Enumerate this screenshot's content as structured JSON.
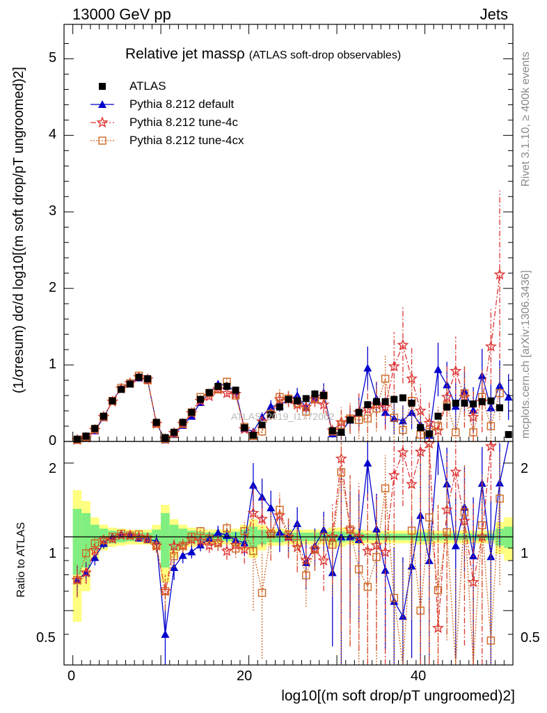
{
  "header": {
    "left": "13000 GeV pp",
    "right": "Jets"
  },
  "title": {
    "main": "Relative jet massρ",
    "sub": "(ATLAS soft-drop observables)"
  },
  "side_labels": {
    "rivet": "Rivet 3.1.10, ≥ 400k events",
    "mcplots": "mcplots.cern.ch [arXiv:1306.3436]"
  },
  "watermark": "ATLAS_2019_I1772062",
  "axes": {
    "ylabel_main": "(1/σresum) dσ/d log10[(m soft drop/pT ungroomed)2]",
    "ylabel_ratio": "Ratio to ATLAS",
    "xlabel": "log10[(m soft drop/pT ungroomed)2]",
    "main_yticks": [
      "0",
      "1",
      "2",
      "3",
      "4",
      "5"
    ],
    "ratio_yticks": [
      "0.5",
      "1",
      "2"
    ],
    "xticks": [
      "0",
      "20",
      "40"
    ]
  },
  "legend": [
    {
      "label": "ATLAS",
      "color": "#000000",
      "marker": "square-filled"
    },
    {
      "label": "Pythia 8.212 default",
      "color": "#0000cc",
      "marker": "triangle-filled"
    },
    {
      "label": "Pythia 8.212 tune-4c",
      "color": "#dd3333",
      "marker": "star"
    },
    {
      "label": "Pythia 8.212 tune-4cx",
      "color": "#cc6622",
      "marker": "square-open"
    }
  ],
  "chart_data": {
    "type": "scatter",
    "title": "Relative jet massρ (ATLAS soft-drop observables)",
    "xlabel": "log10[(m soft drop/pT ungroomed)2]",
    "ylabel": "(1/σresum) dσ/d log10[(m soft drop/pT ungroomed)2]",
    "xlim": [
      -1,
      50
    ],
    "ylim": [
      0,
      5.45
    ],
    "ratio_ylim": [
      0.3,
      2.45
    ],
    "x": [
      0.5,
      1.5,
      2.5,
      3.5,
      4.5,
      5.5,
      6.5,
      7.5,
      8.5,
      9.5,
      10.5,
      11.5,
      12.5,
      13.5,
      14.5,
      15.5,
      16.5,
      17.5,
      18.5,
      19.5,
      20.5,
      21.5,
      22.5,
      23.5,
      24.5,
      25.5,
      26.5,
      27.5,
      28.5,
      29.5,
      30.5,
      31.5,
      32.5,
      33.5,
      34.5,
      35.5,
      36.5,
      37.5,
      38.5,
      39.5,
      40.5,
      41.5,
      42.5,
      43.5,
      44.5,
      45.5,
      46.5,
      47.5,
      48.5,
      49.5
    ],
    "series": [
      {
        "name": "ATLAS",
        "values": [
          0.03,
          0.07,
          0.17,
          0.33,
          0.53,
          0.68,
          0.75,
          0.84,
          0.82,
          0.25,
          0.05,
          0.12,
          0.25,
          0.38,
          0.55,
          0.64,
          0.72,
          0.72,
          0.67,
          0.18,
          0.08,
          0.22,
          0.35,
          0.45,
          0.55,
          0.53,
          0.56,
          0.62,
          0.6,
          0.14,
          0.12,
          0.28,
          0.38,
          0.48,
          0.52,
          0.52,
          0.55,
          0.57,
          0.5,
          0.18,
          0.1,
          0.33,
          0.45,
          0.5,
          0.5,
          0.49,
          0.52,
          0.53,
          0.44,
          0.09
        ]
      },
      {
        "name": "Pythia 8.212 default",
        "values": [
          0.02,
          0.05,
          0.14,
          0.31,
          0.53,
          0.7,
          0.77,
          0.83,
          0.8,
          0.24,
          0.02,
          0.09,
          0.21,
          0.33,
          0.51,
          0.63,
          0.75,
          0.73,
          0.65,
          0.17,
          0.13,
          0.32,
          0.46,
          0.47,
          0.55,
          0.6,
          0.44,
          0.57,
          0.64,
          0.1,
          0.12,
          0.28,
          0.37,
          0.96,
          0.56,
          0.38,
          0.3,
          0.27,
          0.38,
          0.22,
          0.08,
          0.94,
          0.74,
          0.46,
          0.66,
          0.41,
          0.86,
          0.44,
          0.73,
          0.58
        ],
        "errors": [
          0.003,
          0.005,
          0.01,
          0.015,
          0.02,
          0.02,
          0.02,
          0.02,
          0.02,
          0.015,
          0.005,
          0.01,
          0.015,
          0.02,
          0.03,
          0.04,
          0.05,
          0.05,
          0.05,
          0.02,
          0.03,
          0.06,
          0.08,
          0.08,
          0.1,
          0.1,
          0.1,
          0.1,
          0.12,
          0.05,
          0.1,
          0.15,
          0.2,
          0.28,
          0.22,
          0.2,
          0.2,
          0.2,
          0.22,
          0.2,
          0.1,
          0.35,
          0.3,
          0.3,
          0.3,
          0.3,
          0.35,
          0.3,
          0.33,
          0.3
        ]
      },
      {
        "name": "Pythia 8.212 tune-4c",
        "values": [
          0.02,
          0.05,
          0.15,
          0.32,
          0.52,
          0.69,
          0.76,
          0.84,
          0.81,
          0.23,
          0.03,
          0.11,
          0.23,
          0.37,
          0.53,
          0.59,
          0.68,
          0.63,
          0.62,
          0.16,
          0.1,
          0.26,
          0.36,
          0.55,
          0.55,
          0.48,
          0.45,
          0.55,
          0.48,
          0.14,
          0.25,
          0.3,
          0.38,
          0.42,
          0.48,
          0.45,
          0.98,
          1.26,
          0.82,
          0.4,
          0.24,
          0.14,
          0.58,
          0.92,
          0.58,
          0.32,
          0.52,
          1.24,
          2.18,
          0.0
        ],
        "errors": [
          0.003,
          0.005,
          0.01,
          0.015,
          0.02,
          0.02,
          0.02,
          0.02,
          0.02,
          0.015,
          0.005,
          0.01,
          0.015,
          0.02,
          0.03,
          0.04,
          0.05,
          0.05,
          0.05,
          0.02,
          0.03,
          0.06,
          0.08,
          0.1,
          0.1,
          0.1,
          0.1,
          0.1,
          0.12,
          0.05,
          0.2,
          0.2,
          0.25,
          0.3,
          0.3,
          0.3,
          0.45,
          0.5,
          0.4,
          0.35,
          0.3,
          0.3,
          0.4,
          0.45,
          0.4,
          0.35,
          0.4,
          0.5,
          1.1,
          0.0
        ]
      },
      {
        "name": "Pythia 8.212 tune-4cx",
        "values": [
          0.02,
          0.06,
          0.16,
          0.32,
          0.53,
          0.7,
          0.76,
          0.86,
          0.8,
          0.23,
          0.03,
          0.1,
          0.23,
          0.38,
          0.58,
          0.63,
          0.68,
          0.78,
          0.6,
          0.19,
          0.07,
          0.13,
          0.36,
          0.58,
          0.56,
          0.5,
          0.39,
          0.55,
          0.6,
          0.13,
          0.22,
          0.3,
          0.28,
          0.3,
          0.43,
          0.82,
          0.31,
          0.15,
          0.53,
          0.09,
          0.12,
          0.2,
          0.47,
          0.12,
          0.63,
          0.12,
          0.58,
          0.2,
          0.63,
          0.0
        ],
        "errors": [
          0.003,
          0.005,
          0.01,
          0.015,
          0.02,
          0.02,
          0.02,
          0.02,
          0.02,
          0.015,
          0.005,
          0.01,
          0.015,
          0.02,
          0.03,
          0.04,
          0.05,
          0.05,
          0.05,
          0.02,
          0.03,
          0.06,
          0.08,
          0.1,
          0.1,
          0.1,
          0.1,
          0.1,
          0.12,
          0.05,
          0.2,
          0.2,
          0.25,
          0.3,
          0.3,
          0.3,
          0.3,
          0.3,
          0.3,
          0.3,
          0.2,
          0.25,
          0.3,
          0.25,
          0.35,
          0.25,
          0.35,
          0.3,
          0.35,
          0.0
        ]
      }
    ],
    "ratio_band": {
      "inner": [
        0.3,
        0.25,
        0.12,
        0.08,
        0.06,
        0.05,
        0.04,
        0.04,
        0.04,
        0.07,
        0.25,
        0.12,
        0.08,
        0.06,
        0.05,
        0.04,
        0.04,
        0.04,
        0.05,
        0.07,
        0.1,
        0.07,
        0.05,
        0.05,
        0.04,
        0.04,
        0.04,
        0.04,
        0.04,
        0.05,
        0.05,
        0.04,
        0.04,
        0.03,
        0.03,
        0.03,
        0.03,
        0.03,
        0.03,
        0.04,
        0.04,
        0.03,
        0.03,
        0.03,
        0.03,
        0.03,
        0.03,
        0.03,
        0.08,
        0.1
      ],
      "outer": [
        0.55,
        0.4,
        0.2,
        0.12,
        0.09,
        0.08,
        0.07,
        0.07,
        0.07,
        0.12,
        0.35,
        0.18,
        0.12,
        0.09,
        0.08,
        0.07,
        0.07,
        0.07,
        0.08,
        0.12,
        0.18,
        0.12,
        0.08,
        0.08,
        0.07,
        0.07,
        0.07,
        0.07,
        0.07,
        0.09,
        0.09,
        0.07,
        0.07,
        0.06,
        0.06,
        0.06,
        0.06,
        0.06,
        0.06,
        0.07,
        0.07,
        0.06,
        0.06,
        0.06,
        0.06,
        0.06,
        0.06,
        0.06,
        0.15,
        0.2
      ]
    }
  }
}
